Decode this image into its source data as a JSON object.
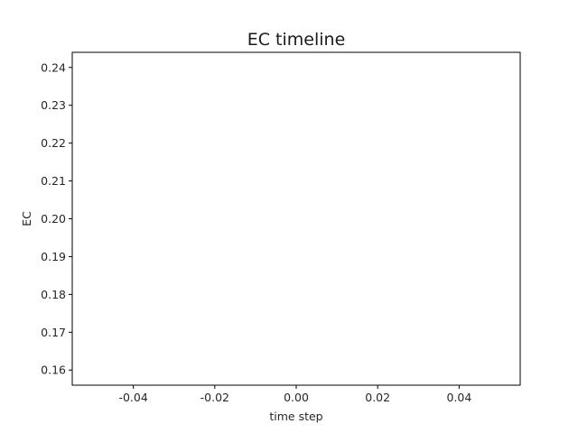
{
  "chart_data": {
    "type": "line",
    "title": "EC timeline",
    "xlabel": "time step",
    "ylabel": "EC",
    "xlim": [
      -0.055,
      0.055
    ],
    "ylim": [
      0.156,
      0.244
    ],
    "xticks": [
      -0.04,
      -0.02,
      0.0,
      0.02,
      0.04
    ],
    "xtick_labels": [
      "-0.04",
      "-0.02",
      "0.00",
      "0.02",
      "0.04"
    ],
    "yticks": [
      0.16,
      0.17,
      0.18,
      0.19,
      0.2,
      0.21,
      0.22,
      0.23,
      0.24
    ],
    "ytick_labels": [
      "0.16",
      "0.17",
      "0.18",
      "0.19",
      "0.20",
      "0.21",
      "0.22",
      "0.23",
      "0.24"
    ],
    "series": [],
    "grid": false,
    "legend": "none"
  }
}
